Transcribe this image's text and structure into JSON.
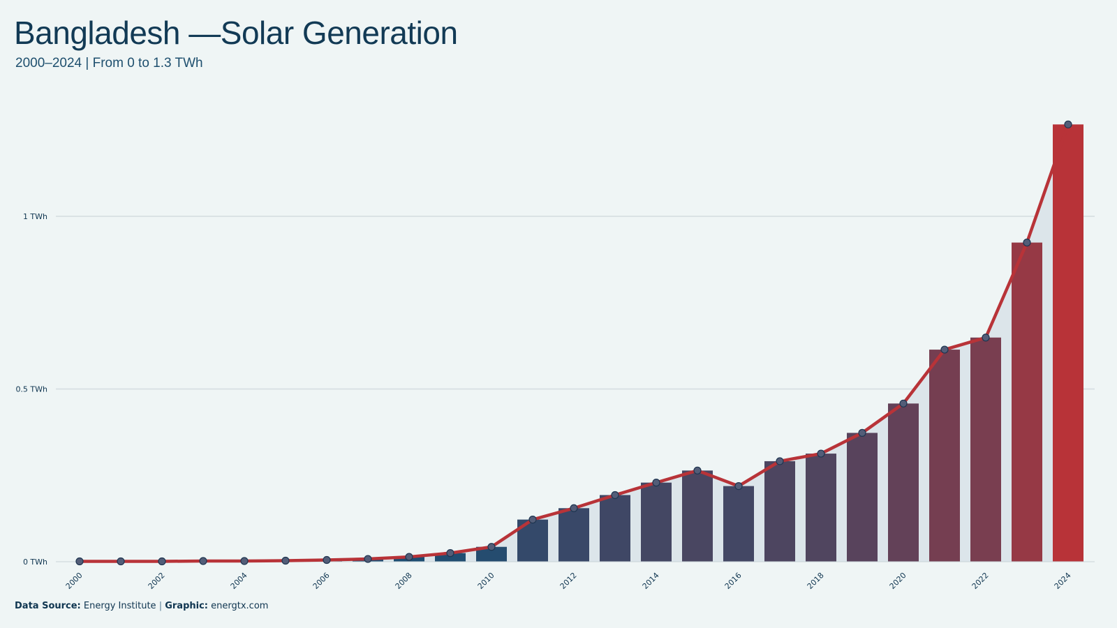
{
  "title": "Bangladesh —Solar Generation",
  "subtitle": "2000–2024 | From 0 to 1.3 TWh",
  "footer": {
    "source_label": "Data Source:",
    "source_value": "Energy Institute",
    "separator": "|",
    "graphic_label": "Graphic:",
    "graphic_value": "energtx.com"
  },
  "colors": {
    "start_bar": "#184e74",
    "end_bar": "#b83338",
    "line": "#b83338",
    "area": "#dce5ea",
    "grid": "#d3dcdf",
    "marker_fill": "#535d78",
    "marker_stroke": "#1e3550"
  },
  "chart_data": {
    "type": "bar",
    "title": "Bangladesh —Solar Generation",
    "subtitle": "2000–2024 | From 0 to 1.3 TWh",
    "unit": "TWh",
    "categories": [
      "2000",
      "2001",
      "2002",
      "2003",
      "2004",
      "2005",
      "2006",
      "2007",
      "2008",
      "2009",
      "2010",
      "2011",
      "2012",
      "2013",
      "2014",
      "2015",
      "2016",
      "2017",
      "2018",
      "2019",
      "2020",
      "2021",
      "2022",
      "2023",
      "2024"
    ],
    "values": [
      0.001,
      0.001,
      0.001,
      0.002,
      0.002,
      0.003,
      0.005,
      0.008,
      0.014,
      0.025,
      0.043,
      0.122,
      0.155,
      0.193,
      0.229,
      0.264,
      0.219,
      0.291,
      0.313,
      0.373,
      0.458,
      0.614,
      0.649,
      0.924,
      1.266
    ],
    "x_tick_labels": [
      "2000",
      "2002",
      "2004",
      "2006",
      "2008",
      "2010",
      "2012",
      "2014",
      "2016",
      "2018",
      "2020",
      "2022",
      "2024"
    ],
    "y_ticks": [
      0,
      0.5,
      1
    ],
    "y_tick_labels": [
      "0 TWh",
      "0.5 TWh",
      "1 TWh"
    ],
    "ylim": [
      0,
      1.35
    ],
    "grid": "horizontal",
    "legend": "none",
    "overlay": "line with markers and shaded area"
  }
}
